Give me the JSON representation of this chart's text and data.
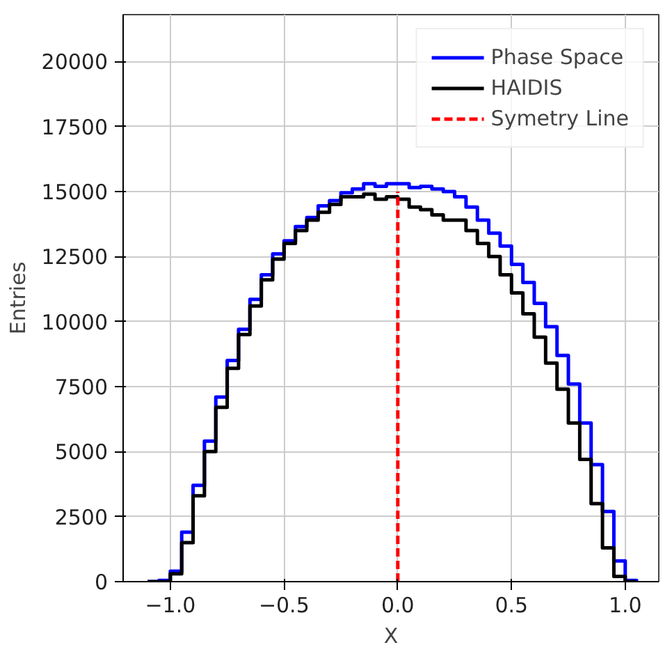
{
  "chart_data": {
    "type": "histogram",
    "xlabel": "X",
    "ylabel": "Entries",
    "bins": [
      -1.1,
      -1.05,
      -1.0,
      -0.95,
      -0.9,
      -0.85,
      -0.8,
      -0.75,
      -0.7,
      -0.65,
      -0.6,
      -0.55,
      -0.5,
      -0.45,
      -0.4,
      -0.35,
      -0.3,
      -0.25,
      -0.2,
      -0.15,
      -0.1,
      -0.05,
      0.0,
      0.05,
      0.1,
      0.15,
      0.2,
      0.25,
      0.3,
      0.35,
      0.4,
      0.45,
      0.5,
      0.55,
      0.6,
      0.65,
      0.7,
      0.75,
      0.8,
      0.85,
      0.9,
      0.95,
      1.0,
      1.05
    ],
    "series": [
      {
        "name": "Phase Space",
        "color": "#0000ff",
        "values": [
          0,
          50,
          400,
          1900,
          3700,
          5400,
          7100,
          8500,
          9700,
          10850,
          11800,
          12600,
          13100,
          13650,
          14000,
          14450,
          14650,
          14950,
          15100,
          15300,
          15200,
          15300,
          15300,
          15150,
          15200,
          15100,
          15000,
          14800,
          14400,
          13900,
          13400,
          12900,
          12200,
          11500,
          10700,
          9800,
          8700,
          7600,
          6100,
          4500,
          2700,
          800,
          50
        ]
      },
      {
        "name": "HAIDIS",
        "color": "#000000",
        "values": [
          0,
          0,
          300,
          1500,
          3300,
          5000,
          6700,
          8200,
          9500,
          10600,
          11600,
          12400,
          13000,
          13500,
          13900,
          14200,
          14500,
          14800,
          14800,
          14900,
          14700,
          14800,
          14700,
          14400,
          14300,
          14100,
          13900,
          13900,
          13500,
          13000,
          12500,
          11800,
          11100,
          10300,
          9400,
          8400,
          7400,
          6100,
          4700,
          3000,
          1300,
          200,
          0
        ]
      },
      {
        "name": "Symetry Line",
        "type": "line",
        "color": "#ff0000",
        "line_style": "dashed",
        "x": [
          0.0,
          0.0
        ],
        "values": [
          0,
          15000
        ]
      }
    ],
    "xlim": [
      -1.2075,
      1.1475
    ],
    "xticks": [
      {
        "value": -1.0,
        "label": "−1.0"
      },
      {
        "value": -0.5,
        "label": "−0.5"
      },
      {
        "value": 0.0,
        "label": "0.0"
      },
      {
        "value": 0.5,
        "label": "0.5"
      },
      {
        "value": 1.0,
        "label": "1.0"
      }
    ],
    "ylim": [
      0,
      21800
    ],
    "yticks": [
      0,
      2500,
      5000,
      7500,
      10000,
      12500,
      15000,
      17500,
      20000
    ],
    "grid": true,
    "legend": "top right"
  }
}
